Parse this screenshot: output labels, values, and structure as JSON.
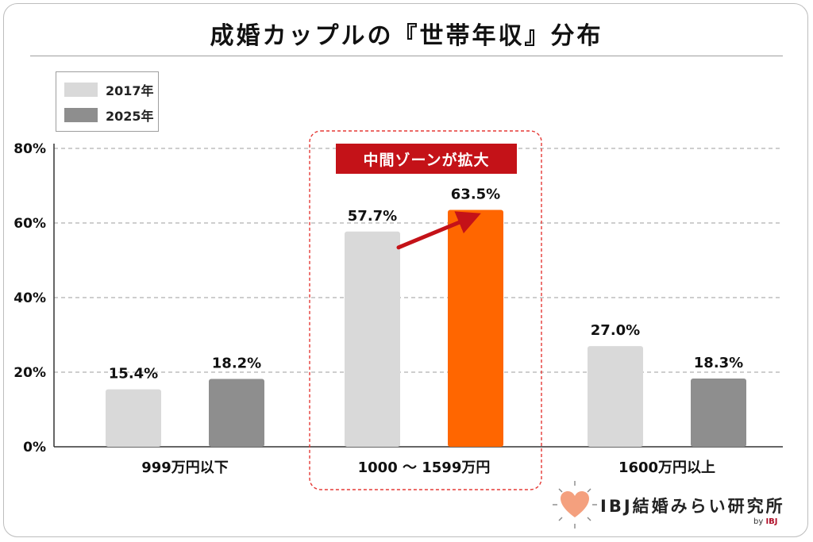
{
  "chart_data": {
    "type": "bar",
    "title": "成婚カップルの『世帯年収』分布",
    "categories": [
      "999万円以下",
      "1000 〜 1599万円",
      "1600万円以上"
    ],
    "series": [
      {
        "name": "2017年",
        "values": [
          15.4,
          57.7,
          27.0
        ],
        "labels": [
          "15.4%",
          "57.7%",
          "27.0%"
        ],
        "color": "#d9d9d9"
      },
      {
        "name": "2025年",
        "values": [
          18.2,
          63.5,
          18.3
        ],
        "labels": [
          "18.2%",
          "63.5%",
          "18.3%"
        ],
        "color": "#8e8e8e"
      }
    ],
    "highlight": {
      "category_index": 1,
      "series_index": 1,
      "color": "#ff6600"
    },
    "yticks": [
      "0%",
      "20%",
      "40%",
      "60%",
      "80%"
    ],
    "ytick_values": [
      0,
      20,
      40,
      60,
      80
    ],
    "ylim": [
      0,
      80
    ],
    "grid": true,
    "legend_position": "top-left",
    "annotation": {
      "text": "中間ゾーンが拡大",
      "color": "#c41218"
    }
  },
  "logo": {
    "text": "IBJ結婚みらい研究所",
    "by": "by",
    "brand": "IBJ"
  }
}
